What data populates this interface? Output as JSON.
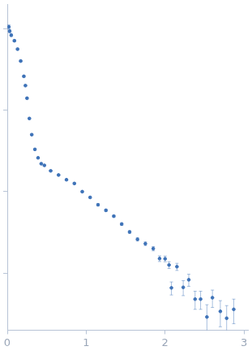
{
  "chart_data": {
    "type": "scatter",
    "log": "y",
    "grid": false,
    "tick_labels": "x",
    "color": "#3f73b8",
    "marker": "circle",
    "xlim": [
      0,
      3.05
    ],
    "xticks": [
      0,
      1,
      2,
      3
    ],
    "ylim": [
      0.02,
      200
    ],
    "yticks": [
      0.1,
      1,
      10,
      100
    ],
    "x": [
      0.02,
      0.03,
      0.05,
      0.09,
      0.13,
      0.17,
      0.21,
      0.23,
      0.25,
      0.28,
      0.31,
      0.35,
      0.39,
      0.43,
      0.47,
      0.55,
      0.65,
      0.75,
      0.85,
      0.95,
      1.05,
      1.15,
      1.25,
      1.35,
      1.45,
      1.55,
      1.65,
      1.75,
      1.85,
      1.93,
      2.0,
      2.05,
      2.08,
      2.15,
      2.23,
      2.3,
      2.38,
      2.45,
      2.53,
      2.6,
      2.7,
      2.78,
      2.87
    ],
    "values": [
      105,
      93,
      83,
      71,
      56,
      40,
      26,
      20,
      14,
      7.9,
      5.0,
      3.3,
      2.6,
      2.2,
      2.1,
      1.8,
      1.6,
      1.4,
      1.26,
      1.0,
      0.85,
      0.69,
      0.59,
      0.5,
      0.4,
      0.32,
      0.26,
      0.23,
      0.2,
      0.151,
      0.15,
      0.126,
      0.066,
      0.12,
      0.067,
      0.083,
      0.048,
      0.048,
      0.029,
      0.05,
      0.034,
      0.028,
      0.036
    ],
    "errors": [
      6,
      4,
      3,
      2,
      1.5,
      1,
      0.6,
      0.4,
      0.3,
      0.15,
      0.1,
      0.06,
      0.05,
      0.04,
      0.04,
      0.03,
      0.03,
      0.03,
      0.03,
      0.02,
      0.02,
      0.02,
      0.02,
      0.015,
      0.015,
      0.012,
      0.012,
      0.012,
      0.012,
      0.012,
      0.012,
      0.012,
      0.012,
      0.012,
      0.014,
      0.014,
      0.012,
      0.012,
      0.012,
      0.012,
      0.012,
      0.012,
      0.012
    ]
  }
}
